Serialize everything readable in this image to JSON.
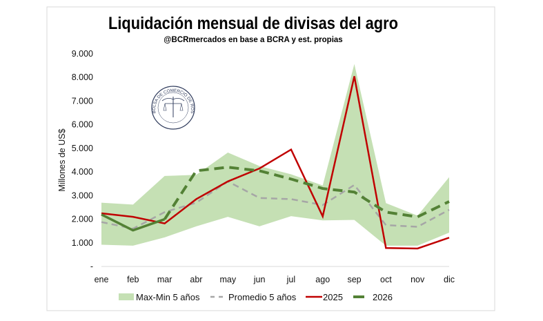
{
  "chart_data": {
    "type": "line",
    "title": "Liquidación mensual de divisas del agro",
    "subtitle": "@BCRmercados en base a BCRA y est. propias",
    "ylabel": "Millones de US$",
    "xlabel": "",
    "categories": [
      "ene",
      "feb",
      "mar",
      "abr",
      "may",
      "jun",
      "jul",
      "ago",
      "sep",
      "oct",
      "nov",
      "dic"
    ],
    "ylim": [
      0,
      9000
    ],
    "yticks": [
      0,
      1000,
      2000,
      3000,
      4000,
      5000,
      6000,
      7000,
      8000,
      9000
    ],
    "ytick_labels": [
      "-",
      "1.000",
      "2.000",
      "3.000",
      "4.000",
      "5.000",
      "6.000",
      "7.000",
      "8.000",
      "9.000"
    ],
    "grid": false,
    "legend_position": "bottom",
    "band": {
      "name": "Max-Min 5 años",
      "color": "#c5e0b4",
      "max": [
        2700,
        2620,
        3830,
        3880,
        4820,
        4250,
        3900,
        3430,
        8570,
        2680,
        2150,
        3780
      ],
      "min": [
        920,
        880,
        1230,
        1700,
        2100,
        1700,
        2130,
        1950,
        1970,
        880,
        880,
        1430
      ]
    },
    "series": [
      {
        "name": "Promedio 5 años",
        "color": "#a6a6a6",
        "style": "dashed",
        "values": [
          1880,
          1600,
          2300,
          2700,
          3600,
          2900,
          2850,
          2600,
          3450,
          1750,
          1680,
          2400
        ]
      },
      {
        "name": "2025",
        "color": "#c00000",
        "style": "solid",
        "values": [
          2250,
          2100,
          1820,
          2850,
          3600,
          4150,
          4950,
          2120,
          8050,
          780,
          760,
          1220
        ]
      },
      {
        "name": "2026",
        "color": "#538135",
        "style": "dashed",
        "solid_through": "mar",
        "values": [
          2200,
          1530,
          2000,
          4050,
          4200,
          4050,
          3700,
          3300,
          3150,
          2300,
          2100,
          2750
        ]
      }
    ]
  },
  "logo": {
    "text": "BOLSA DE COMERCIO DE ROSARIO",
    "color": "#2f3b5c"
  }
}
